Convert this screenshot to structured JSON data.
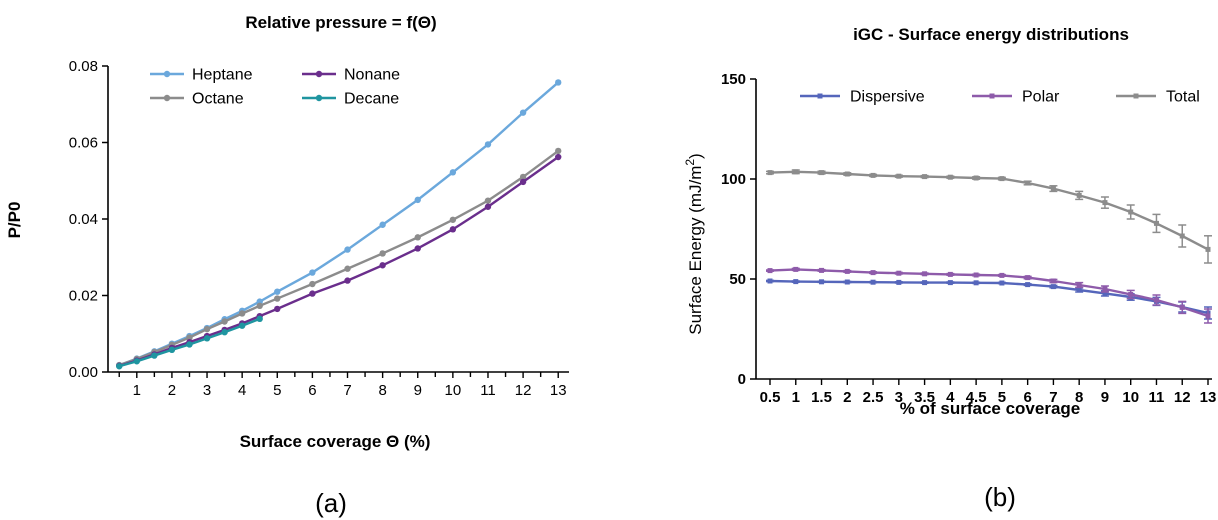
{
  "panels": {
    "a": "(a)",
    "b": "(b)"
  },
  "chart_data": [
    {
      "type": "line",
      "title": "Relative pressure = f(Θ)",
      "xlabel": "Surface coverage Θ (%)",
      "ylabel": "P/P0",
      "xlim": [
        0,
        13.2
      ],
      "ylim": [
        0,
        0.08
      ],
      "xticks": [
        1,
        2,
        3,
        4,
        5,
        6,
        7,
        8,
        9,
        10,
        11,
        12,
        13
      ],
      "yticks": [
        "0.00",
        "0.02",
        "0.04",
        "0.06",
        "0.08"
      ],
      "legend_position": "top-left",
      "series": [
        {
          "name": "Heptane",
          "color": "#6BA8DC",
          "x": [
            0.5,
            1,
            1.5,
            2,
            2.5,
            3,
            3.5,
            4,
            4.5,
            5,
            6,
            7,
            8,
            9,
            10,
            11,
            12,
            13
          ],
          "y": [
            0.0018,
            0.0035,
            0.0054,
            0.0074,
            0.0094,
            0.0115,
            0.0138,
            0.016,
            0.0184,
            0.021,
            0.026,
            0.032,
            0.0385,
            0.045,
            0.0522,
            0.0595,
            0.0678,
            0.0757
          ]
        },
        {
          "name": "Octane",
          "color": "#8C8C8C",
          "x": [
            0.5,
            1,
            1.5,
            2,
            2.5,
            3,
            3.5,
            4,
            4.5,
            5,
            6,
            7,
            8,
            9,
            10,
            11,
            12,
            13
          ],
          "y": [
            0.0018,
            0.0034,
            0.0052,
            0.0071,
            0.009,
            0.0112,
            0.0132,
            0.0153,
            0.0173,
            0.0192,
            0.023,
            0.027,
            0.031,
            0.0352,
            0.0398,
            0.0448,
            0.051,
            0.0578
          ]
        },
        {
          "name": "Nonane",
          "color": "#6A2E8C",
          "x": [
            0.5,
            1,
            1.5,
            2,
            2.5,
            3,
            3.5,
            4,
            4.5,
            5,
            6,
            7,
            8,
            9,
            10,
            11,
            12,
            13
          ],
          "y": [
            0.0016,
            0.003,
            0.0046,
            0.0063,
            0.0078,
            0.0094,
            0.011,
            0.0127,
            0.0146,
            0.0165,
            0.0205,
            0.0239,
            0.0279,
            0.0323,
            0.0373,
            0.0432,
            0.0497,
            0.0562
          ]
        },
        {
          "name": "Decane",
          "color": "#1F95A0",
          "x": [
            0.5,
            1,
            1.5,
            2,
            2.5,
            3,
            3.5,
            4,
            4.5
          ],
          "y": [
            0.0015,
            0.0028,
            0.0043,
            0.0058,
            0.0072,
            0.0088,
            0.0104,
            0.0121,
            0.0139
          ]
        }
      ]
    },
    {
      "type": "line",
      "title": "iGC - Surface energy distributions",
      "xlabel": "% of surface coverage",
      "ylabel": "Surface Energy (mJ/m²)",
      "ylim": [
        0,
        150
      ],
      "yticks": [
        "0",
        "50",
        "100",
        "150"
      ],
      "categories": [
        "0.5",
        "1",
        "1.5",
        "2",
        "2.5",
        "3",
        "3.5",
        "4",
        "4.5",
        "5",
        "6",
        "7",
        "8",
        "9",
        "10",
        "11",
        "12",
        "13"
      ],
      "legend_position": "top",
      "series": [
        {
          "name": "Dispersive",
          "color": "#5566BB",
          "values": [
            49,
            48.7,
            48.6,
            48.5,
            48.4,
            48.3,
            48.2,
            48.2,
            48.1,
            48,
            47.2,
            46.2,
            44.5,
            42.8,
            41,
            38.8,
            36,
            33
          ],
          "error": [
            0.3,
            0.3,
            0.3,
            0.3,
            0.3,
            0.3,
            0.3,
            0.3,
            0.3,
            0.3,
            0.4,
            0.6,
            1,
            1.3,
            1.6,
            2,
            2.5,
            3
          ]
        },
        {
          "name": "Polar",
          "color": "#8E5BAA",
          "values": [
            54.2,
            54.8,
            54.3,
            53.8,
            53.2,
            52.9,
            52.6,
            52.3,
            52,
            51.8,
            50.7,
            49,
            47,
            45,
            42.3,
            39.5,
            35.8,
            31.5
          ],
          "error": [
            0.3,
            0.5,
            0.4,
            0.4,
            0.4,
            0.4,
            0.4,
            0.4,
            0.4,
            0.4,
            0.6,
            0.8,
            1.2,
            1.5,
            2,
            2.5,
            3,
            3.5
          ]
        },
        {
          "name": "Total",
          "color": "#8C8C8C",
          "values": [
            103.2,
            103.6,
            103.2,
            102.5,
            101.8,
            101.4,
            101.2,
            100.9,
            100.5,
            100.2,
            98,
            95.2,
            91.8,
            88.2,
            83.5,
            77.8,
            71.5,
            64.8
          ],
          "error": [
            0.6,
            0.9,
            0.7,
            0.6,
            0.5,
            0.5,
            0.5,
            0.5,
            0.6,
            0.6,
            0.9,
            1.4,
            2,
            2.8,
            3.5,
            4.5,
            5.5,
            6.8
          ]
        }
      ]
    }
  ]
}
